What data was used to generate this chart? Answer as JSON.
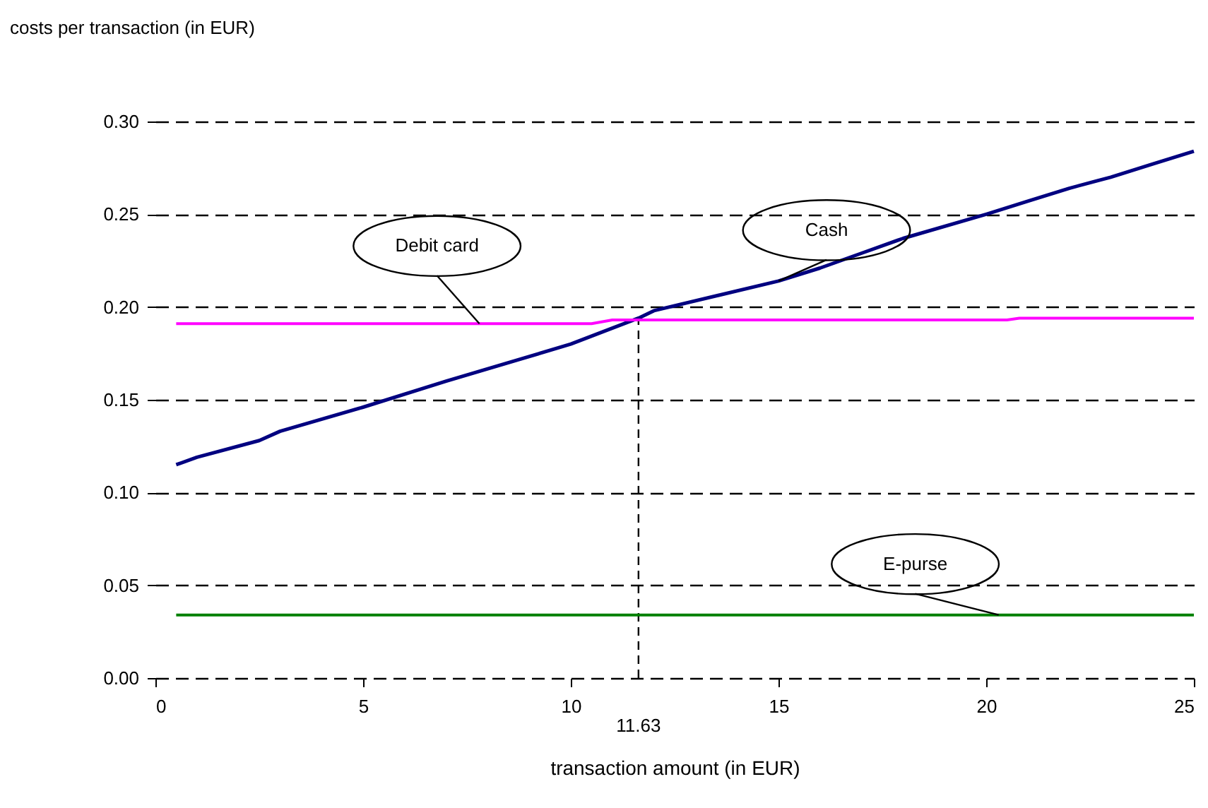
{
  "chart_data": {
    "type": "line",
    "title": "costs per transaction (in EUR)",
    "xlabel": "transaction amount (in EUR)",
    "xlim": [
      0,
      25
    ],
    "xticks": [
      0,
      5,
      10,
      15,
      20,
      25
    ],
    "ylim": [
      0,
      0.3
    ],
    "yticks": [
      {
        "value": 0,
        "label": "0.00"
      },
      {
        "value": 0.05,
        "label": "0.05"
      },
      {
        "value": 0.1,
        "label": "0.10"
      },
      {
        "value": 0.15,
        "label": "0.15"
      },
      {
        "value": 0.2,
        "label": "0.20"
      },
      {
        "value": 0.25,
        "label": "0.25"
      },
      {
        "value": 0.3,
        "label": "0.30"
      }
    ],
    "grid": "y",
    "line_style": "solid",
    "marker": "none",
    "series": [
      {
        "name": "Cash",
        "color": "#000080",
        "x": [
          0.5,
          1,
          2.5,
          3,
          5,
          7,
          10,
          11.63,
          12,
          15,
          16,
          17,
          18,
          20,
          21,
          22,
          23,
          24,
          25
        ],
        "values": [
          0.115,
          0.119,
          0.128,
          0.133,
          0.146,
          0.16,
          0.18,
          0.194,
          0.198,
          0.214,
          0.221,
          0.229,
          0.237,
          0.25,
          0.257,
          0.264,
          0.27,
          0.277,
          0.284
        ]
      },
      {
        "name": "Debit card",
        "color": "#ff00ff",
        "x": [
          0.5,
          10.5,
          11,
          20.5,
          20.8,
          25
        ],
        "values": [
          0.191,
          0.191,
          0.193,
          0.193,
          0.194,
          0.194
        ]
      },
      {
        "name": "E-purse",
        "color": "#008000",
        "x": [
          0.5,
          25
        ],
        "values": [
          0.034,
          0.034
        ]
      }
    ],
    "ref_lines": [
      {
        "axis": "x",
        "value": 11.63,
        "label": "11.63",
        "color": "#000000",
        "line_style": "dashed"
      }
    ]
  }
}
